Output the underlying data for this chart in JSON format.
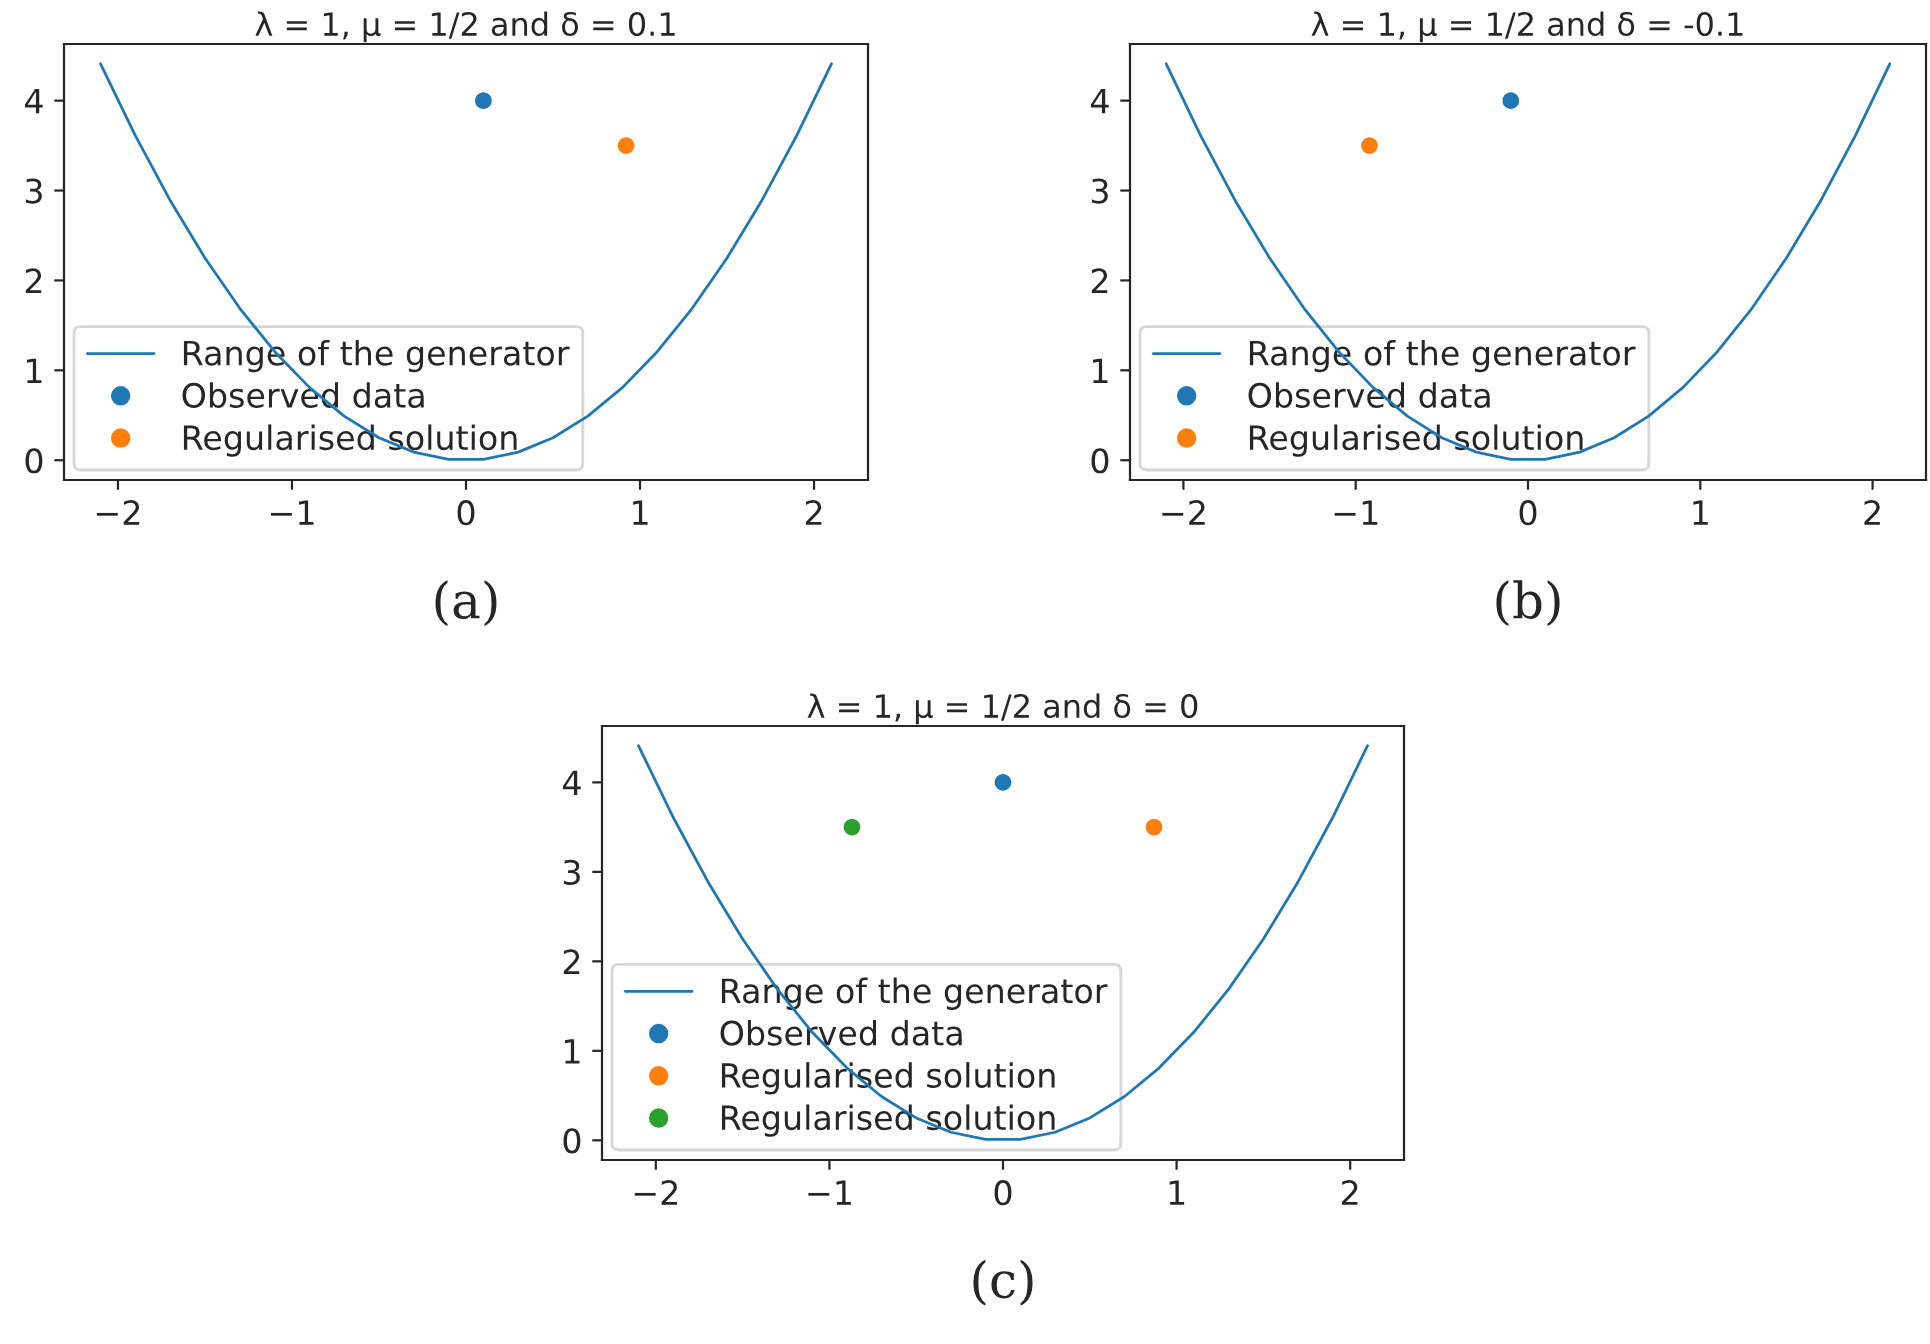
{
  "chart_data": [
    {
      "type": "line",
      "title": "λ = 1, μ = 1/2 and δ = 0.1",
      "annotations": [
        "(a)"
      ],
      "legend": "bottom left",
      "xlim": [
        -2.31,
        2.31
      ],
      "ylim": [
        -0.22,
        4.63
      ],
      "xticks": [
        -2,
        -1,
        0,
        1,
        2
      ],
      "yticks": [
        0,
        1,
        2,
        3,
        4
      ],
      "series": [
        {
          "name": "Range of the generator",
          "type": "line",
          "color": "#1f77b4",
          "x": [
            -2.1,
            -1.9,
            -1.7,
            -1.5,
            -1.3,
            -1.1,
            -0.9,
            -0.7,
            -0.5,
            -0.3,
            -0.1,
            0.1,
            0.3,
            0.5,
            0.7,
            0.9,
            1.1,
            1.3,
            1.5,
            1.7,
            1.9,
            2.1
          ],
          "values": [
            4.41,
            3.61,
            2.89,
            2.25,
            1.69,
            1.21,
            0.81,
            0.49,
            0.25,
            0.09,
            0.01,
            0.01,
            0.09,
            0.25,
            0.49,
            0.81,
            1.21,
            1.69,
            2.25,
            2.89,
            3.61,
            4.41
          ]
        },
        {
          "name": "Observed data",
          "type": "scatter",
          "color": "#1f77b4",
          "x": [
            0.1
          ],
          "values": [
            4
          ]
        },
        {
          "name": "Regularised solution",
          "type": "scatter",
          "color": "#ff7f0e",
          "x": [
            0.92
          ],
          "values": [
            3.5
          ]
        }
      ]
    },
    {
      "type": "line",
      "title": "λ = 1, μ = 1/2 and δ = -0.1",
      "annotations": [
        "(b)"
      ],
      "legend": "bottom left",
      "xlim": [
        -2.31,
        2.31
      ],
      "ylim": [
        -0.22,
        4.63
      ],
      "xticks": [
        -2,
        -1,
        0,
        1,
        2
      ],
      "yticks": [
        0,
        1,
        2,
        3,
        4
      ],
      "series": [
        {
          "name": "Range of the generator",
          "type": "line",
          "color": "#1f77b4",
          "x": [
            -2.1,
            -1.9,
            -1.7,
            -1.5,
            -1.3,
            -1.1,
            -0.9,
            -0.7,
            -0.5,
            -0.3,
            -0.1,
            0.1,
            0.3,
            0.5,
            0.7,
            0.9,
            1.1,
            1.3,
            1.5,
            1.7,
            1.9,
            2.1
          ],
          "values": [
            4.41,
            3.61,
            2.89,
            2.25,
            1.69,
            1.21,
            0.81,
            0.49,
            0.25,
            0.09,
            0.01,
            0.01,
            0.09,
            0.25,
            0.49,
            0.81,
            1.21,
            1.69,
            2.25,
            2.89,
            3.61,
            4.41
          ]
        },
        {
          "name": "Observed data",
          "type": "scatter",
          "color": "#1f77b4",
          "x": [
            -0.1
          ],
          "values": [
            4
          ]
        },
        {
          "name": "Regularised solution",
          "type": "scatter",
          "color": "#ff7f0e",
          "x": [
            -0.92
          ],
          "values": [
            3.5
          ]
        }
      ]
    },
    {
      "type": "line",
      "title": "λ = 1, μ = 1/2 and δ = 0",
      "annotations": [
        "(c)"
      ],
      "legend": "bottom left",
      "xlim": [
        -2.31,
        2.31
      ],
      "ylim": [
        -0.22,
        4.63
      ],
      "xticks": [
        -2,
        -1,
        0,
        1,
        2
      ],
      "yticks": [
        0,
        1,
        2,
        3,
        4
      ],
      "series": [
        {
          "name": "Range of the generator",
          "type": "line",
          "color": "#1f77b4",
          "x": [
            -2.1,
            -1.9,
            -1.7,
            -1.5,
            -1.3,
            -1.1,
            -0.9,
            -0.7,
            -0.5,
            -0.3,
            -0.1,
            0.1,
            0.3,
            0.5,
            0.7,
            0.9,
            1.1,
            1.3,
            1.5,
            1.7,
            1.9,
            2.1
          ],
          "values": [
            4.41,
            3.61,
            2.89,
            2.25,
            1.69,
            1.21,
            0.81,
            0.49,
            0.25,
            0.09,
            0.01,
            0.01,
            0.09,
            0.25,
            0.49,
            0.81,
            1.21,
            1.69,
            2.25,
            2.89,
            3.61,
            4.41
          ]
        },
        {
          "name": "Observed data",
          "type": "scatter",
          "color": "#1f77b4",
          "x": [
            0
          ],
          "values": [
            4
          ]
        },
        {
          "name": "Regularised solution",
          "type": "scatter",
          "color": "#ff7f0e",
          "x": [
            0.87
          ],
          "values": [
            3.5
          ]
        },
        {
          "name": "Regularised solution",
          "type": "scatter",
          "color": "#2ca02c",
          "x": [
            -0.87
          ],
          "values": [
            3.5
          ]
        }
      ]
    }
  ]
}
